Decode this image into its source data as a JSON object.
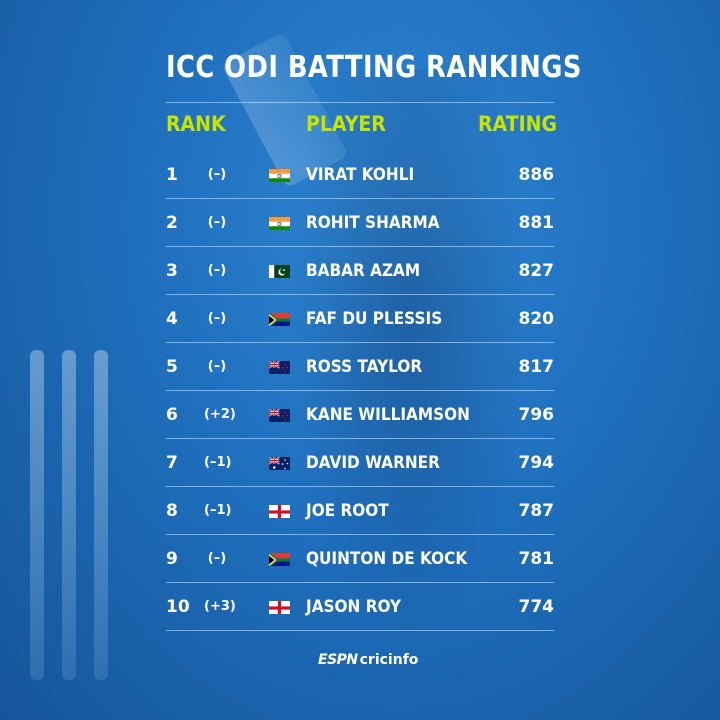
{
  "title": "ICC ODI BATTING RANKINGS",
  "headers": {
    "rank": "RANK",
    "player": "PLAYER",
    "rating": "RATING"
  },
  "rows": [
    {
      "rank": "1",
      "move": "(–)",
      "flag": "india-flag-icon",
      "player": "VIRAT KOHLI",
      "rating": "886"
    },
    {
      "rank": "2",
      "move": "(–)",
      "flag": "india-flag-icon",
      "player": "ROHIT SHARMA",
      "rating": "881"
    },
    {
      "rank": "3",
      "move": "(–)",
      "flag": "pakistan-flag-icon",
      "player": "BABAR AZAM",
      "rating": "827"
    },
    {
      "rank": "4",
      "move": "(–)",
      "flag": "south-africa-flag-icon",
      "player": "FAF DU PLESSIS",
      "rating": "820"
    },
    {
      "rank": "5",
      "move": "(–)",
      "flag": "new-zealand-flag-icon",
      "player": "ROSS TAYLOR",
      "rating": "817"
    },
    {
      "rank": "6",
      "move": "(+2)",
      "flag": "new-zealand-flag-icon",
      "player": "KANE WILLIAMSON",
      "rating": "796"
    },
    {
      "rank": "7",
      "move": "(–1)",
      "flag": "australia-flag-icon",
      "player": "DAVID WARNER",
      "rating": "794"
    },
    {
      "rank": "8",
      "move": "(–1)",
      "flag": "england-flag-icon",
      "player": "JOE ROOT",
      "rating": "787"
    },
    {
      "rank": "9",
      "move": "(–)",
      "flag": "south-africa-flag-icon",
      "player": "QUINTON DE KOCK",
      "rating": "781"
    },
    {
      "rank": "10",
      "move": "(+3)",
      "flag": "england-flag-icon",
      "player": "JASON ROY",
      "rating": "774"
    }
  ],
  "logo": {
    "espn": "ESPN",
    "cricinfo": "cricinfo"
  },
  "colors": {
    "background": "#1f6fbd",
    "header_accent": "#c6e400",
    "text": "#ffffff"
  }
}
